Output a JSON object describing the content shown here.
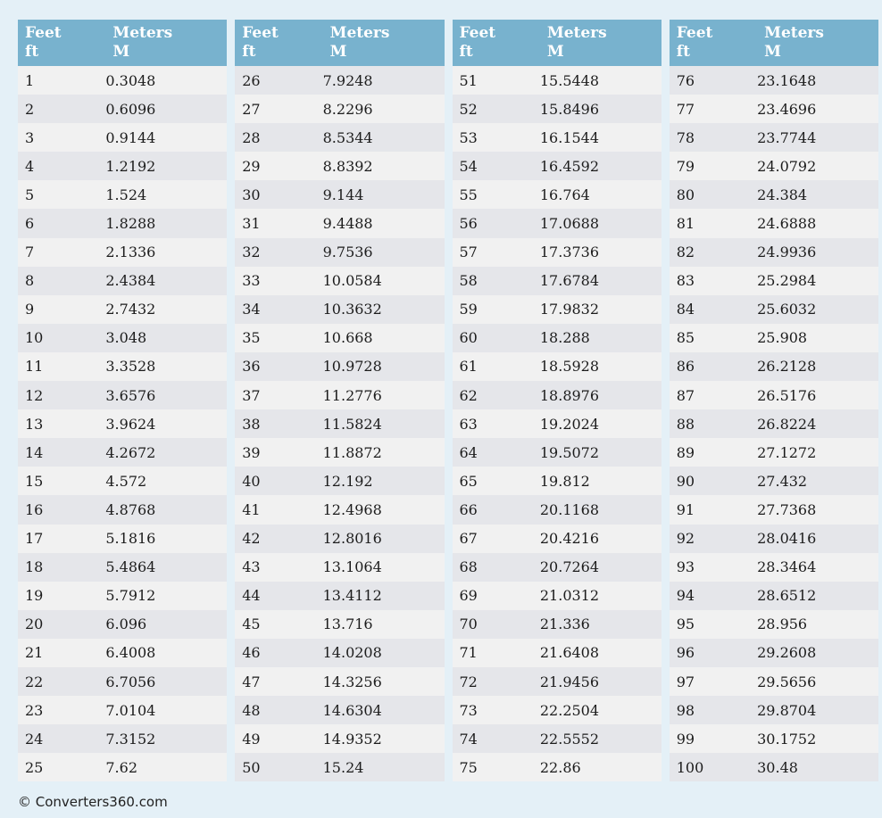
{
  "page": {
    "footer": "© Converters360.com"
  },
  "colors": {
    "background": "#e4f0f7",
    "header_bg": "#78b2ce",
    "header_text": "#ffffff",
    "row_odd": "#f1f1f1",
    "row_even": "#e5e6ea",
    "cell_text": "#1c1c1c"
  },
  "table": {
    "header": {
      "feet_label": "Feet",
      "feet_unit": "ft",
      "meters_label": "Meters",
      "meters_unit": "M"
    },
    "columns": [
      {
        "rows": [
          {
            "ft": "1",
            "m": "0.3048"
          },
          {
            "ft": "2",
            "m": "0.6096"
          },
          {
            "ft": "3",
            "m": "0.9144"
          },
          {
            "ft": "4",
            "m": "1.2192"
          },
          {
            "ft": "5",
            "m": "1.524"
          },
          {
            "ft": "6",
            "m": "1.8288"
          },
          {
            "ft": "7",
            "m": "2.1336"
          },
          {
            "ft": "8",
            "m": "2.4384"
          },
          {
            "ft": "9",
            "m": "2.7432"
          },
          {
            "ft": "10",
            "m": "3.048"
          },
          {
            "ft": "11",
            "m": "3.3528"
          },
          {
            "ft": "12",
            "m": "3.6576"
          },
          {
            "ft": "13",
            "m": "3.9624"
          },
          {
            "ft": "14",
            "m": "4.2672"
          },
          {
            "ft": "15",
            "m": "4.572"
          },
          {
            "ft": "16",
            "m": "4.8768"
          },
          {
            "ft": "17",
            "m": "5.1816"
          },
          {
            "ft": "18",
            "m": "5.4864"
          },
          {
            "ft": "19",
            "m": "5.7912"
          },
          {
            "ft": "20",
            "m": "6.096"
          },
          {
            "ft": "21",
            "m": "6.4008"
          },
          {
            "ft": "22",
            "m": "6.7056"
          },
          {
            "ft": "23",
            "m": "7.0104"
          },
          {
            "ft": "24",
            "m": "7.3152"
          },
          {
            "ft": "25",
            "m": "7.62"
          }
        ]
      },
      {
        "rows": [
          {
            "ft": "26",
            "m": "7.9248"
          },
          {
            "ft": "27",
            "m": "8.2296"
          },
          {
            "ft": "28",
            "m": "8.5344"
          },
          {
            "ft": "29",
            "m": "8.8392"
          },
          {
            "ft": "30",
            "m": "9.144"
          },
          {
            "ft": "31",
            "m": "9.4488"
          },
          {
            "ft": "32",
            "m": "9.7536"
          },
          {
            "ft": "33",
            "m": "10.0584"
          },
          {
            "ft": "34",
            "m": "10.3632"
          },
          {
            "ft": "35",
            "m": "10.668"
          },
          {
            "ft": "36",
            "m": "10.9728"
          },
          {
            "ft": "37",
            "m": "11.2776"
          },
          {
            "ft": "38",
            "m": "11.5824"
          },
          {
            "ft": "39",
            "m": "11.8872"
          },
          {
            "ft": "40",
            "m": "12.192"
          },
          {
            "ft": "41",
            "m": "12.4968"
          },
          {
            "ft": "42",
            "m": "12.8016"
          },
          {
            "ft": "43",
            "m": "13.1064"
          },
          {
            "ft": "44",
            "m": "13.4112"
          },
          {
            "ft": "45",
            "m": "13.716"
          },
          {
            "ft": "46",
            "m": "14.0208"
          },
          {
            "ft": "47",
            "m": "14.3256"
          },
          {
            "ft": "48",
            "m": "14.6304"
          },
          {
            "ft": "49",
            "m": "14.9352"
          },
          {
            "ft": "50",
            "m": "15.24"
          }
        ]
      },
      {
        "rows": [
          {
            "ft": "51",
            "m": "15.5448"
          },
          {
            "ft": "52",
            "m": "15.8496"
          },
          {
            "ft": "53",
            "m": "16.1544"
          },
          {
            "ft": "54",
            "m": "16.4592"
          },
          {
            "ft": "55",
            "m": "16.764"
          },
          {
            "ft": "56",
            "m": "17.0688"
          },
          {
            "ft": "57",
            "m": "17.3736"
          },
          {
            "ft": "58",
            "m": "17.6784"
          },
          {
            "ft": "59",
            "m": "17.9832"
          },
          {
            "ft": "60",
            "m": "18.288"
          },
          {
            "ft": "61",
            "m": "18.5928"
          },
          {
            "ft": "62",
            "m": "18.8976"
          },
          {
            "ft": "63",
            "m": "19.2024"
          },
          {
            "ft": "64",
            "m": "19.5072"
          },
          {
            "ft": "65",
            "m": "19.812"
          },
          {
            "ft": "66",
            "m": "20.1168"
          },
          {
            "ft": "67",
            "m": "20.4216"
          },
          {
            "ft": "68",
            "m": "20.7264"
          },
          {
            "ft": "69",
            "m": "21.0312"
          },
          {
            "ft": "70",
            "m": "21.336"
          },
          {
            "ft": "71",
            "m": "21.6408"
          },
          {
            "ft": "72",
            "m": "21.9456"
          },
          {
            "ft": "73",
            "m": "22.2504"
          },
          {
            "ft": "74",
            "m": "22.5552"
          },
          {
            "ft": "75",
            "m": "22.86"
          }
        ]
      },
      {
        "rows": [
          {
            "ft": "76",
            "m": "23.1648"
          },
          {
            "ft": "77",
            "m": "23.4696"
          },
          {
            "ft": "78",
            "m": "23.7744"
          },
          {
            "ft": "79",
            "m": "24.0792"
          },
          {
            "ft": "80",
            "m": "24.384"
          },
          {
            "ft": "81",
            "m": "24.6888"
          },
          {
            "ft": "82",
            "m": "24.9936"
          },
          {
            "ft": "83",
            "m": "25.2984"
          },
          {
            "ft": "84",
            "m": "25.6032"
          },
          {
            "ft": "85",
            "m": "25.908"
          },
          {
            "ft": "86",
            "m": "26.2128"
          },
          {
            "ft": "87",
            "m": "26.5176"
          },
          {
            "ft": "88",
            "m": "26.8224"
          },
          {
            "ft": "89",
            "m": "27.1272"
          },
          {
            "ft": "90",
            "m": "27.432"
          },
          {
            "ft": "91",
            "m": "27.7368"
          },
          {
            "ft": "92",
            "m": "28.0416"
          },
          {
            "ft": "93",
            "m": "28.3464"
          },
          {
            "ft": "94",
            "m": "28.6512"
          },
          {
            "ft": "95",
            "m": "28.956"
          },
          {
            "ft": "96",
            "m": "29.2608"
          },
          {
            "ft": "97",
            "m": "29.5656"
          },
          {
            "ft": "98",
            "m": "29.8704"
          },
          {
            "ft": "99",
            "m": "30.1752"
          },
          {
            "ft": "100",
            "m": "30.48"
          }
        ]
      }
    ]
  }
}
